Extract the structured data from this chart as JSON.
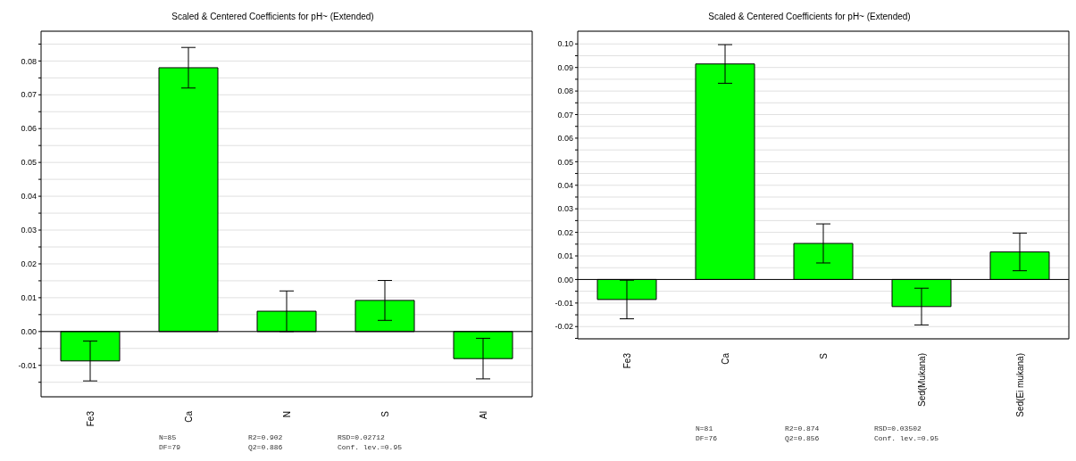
{
  "chart_data": [
    {
      "type": "bar",
      "title": "Scaled & Centered Coefficients for pH~ (Extended)",
      "categories": [
        "Fe3",
        "Ca",
        "N",
        "S",
        "Al"
      ],
      "series": [
        {
          "color": "#00ff00",
          "values": [
            -0.0087,
            0.078,
            0.006,
            0.0092,
            -0.008
          ],
          "errors": [
            0.0059,
            0.006,
            0.006,
            0.0059,
            0.006
          ]
        }
      ],
      "ylim": [
        -0.0193,
        0.0888
      ],
      "yticks": [
        {
          "value": -0.015,
          "label": null
        },
        {
          "value": -0.01,
          "label": "-0.01"
        },
        {
          "value": -0.005,
          "label": null
        },
        {
          "value": 0,
          "label": "0.00"
        },
        {
          "value": 0.005,
          "label": null
        },
        {
          "value": 0.01,
          "label": "0.01"
        },
        {
          "value": 0.015,
          "label": null
        },
        {
          "value": 0.02,
          "label": "0.02"
        },
        {
          "value": 0.025,
          "label": null
        },
        {
          "value": 0.03,
          "label": "0.03"
        },
        {
          "value": 0.035,
          "label": null
        },
        {
          "value": 0.04,
          "label": "0.04"
        },
        {
          "value": 0.045,
          "label": null
        },
        {
          "value": 0.05,
          "label": "0.05"
        },
        {
          "value": 0.055,
          "label": null
        },
        {
          "value": 0.06,
          "label": "0.06"
        },
        {
          "value": 0.065,
          "label": null
        },
        {
          "value": 0.07,
          "label": "0.07"
        },
        {
          "value": 0.075,
          "label": null
        },
        {
          "value": 0.08,
          "label": "0.08"
        },
        {
          "value": 0.085,
          "label": null
        }
      ],
      "ref_lines": [
        {
          "axis": "y",
          "value": 0,
          "color": "#000000"
        }
      ],
      "grid": "y",
      "legend": false,
      "annotations": [
        "N=85",
        "R2=0.902",
        "RSD=0.02712",
        "DF=79",
        "Q2=0.886",
        "Conf. lev.=0.95"
      ]
    },
    {
      "type": "bar",
      "title": "Scaled & Centered Coefficients for pH~ (Extended)",
      "categories": [
        "Fe3",
        "Ca",
        "S",
        "Sed(Mukana)",
        "Sed(Ei mukana)"
      ],
      "series": [
        {
          "color": "#00ff00",
          "values": [
            -0.0085,
            0.0915,
            0.0153,
            -0.0115,
            0.0117
          ],
          "errors": [
            0.0082,
            0.0082,
            0.0083,
            0.0078,
            0.008
          ]
        }
      ],
      "ylim": [
        -0.0252,
        0.1054
      ],
      "yticks": [
        {
          "value": -0.025,
          "label": null
        },
        {
          "value": -0.02,
          "label": "-0.02"
        },
        {
          "value": -0.015,
          "label": null
        },
        {
          "value": -0.01,
          "label": "-0.01"
        },
        {
          "value": -0.005,
          "label": null
        },
        {
          "value": 0,
          "label": "0.00"
        },
        {
          "value": 0.005,
          "label": null
        },
        {
          "value": 0.01,
          "label": "0.01"
        },
        {
          "value": 0.015,
          "label": null
        },
        {
          "value": 0.02,
          "label": "0.02"
        },
        {
          "value": 0.025,
          "label": null
        },
        {
          "value": 0.03,
          "label": "0.03"
        },
        {
          "value": 0.035,
          "label": null
        },
        {
          "value": 0.04,
          "label": "0.04"
        },
        {
          "value": 0.045,
          "label": null
        },
        {
          "value": 0.05,
          "label": "0.05"
        },
        {
          "value": 0.055,
          "label": null
        },
        {
          "value": 0.06,
          "label": "0.06"
        },
        {
          "value": 0.065,
          "label": null
        },
        {
          "value": 0.07,
          "label": "0.07"
        },
        {
          "value": 0.075,
          "label": null
        },
        {
          "value": 0.08,
          "label": "0.08"
        },
        {
          "value": 0.085,
          "label": null
        },
        {
          "value": 0.09,
          "label": "0.09"
        },
        {
          "value": 0.095,
          "label": null
        },
        {
          "value": 0.1,
          "label": "0.10"
        }
      ],
      "ref_lines": [
        {
          "axis": "y",
          "value": 0,
          "color": "#000000"
        }
      ],
      "grid": "y",
      "legend": false,
      "annotations": [
        "N=81",
        "R2=0.874",
        "RSD=0.03502",
        "DF=76",
        "Q2=0.856",
        "Conf. lev.=0.95"
      ]
    }
  ]
}
